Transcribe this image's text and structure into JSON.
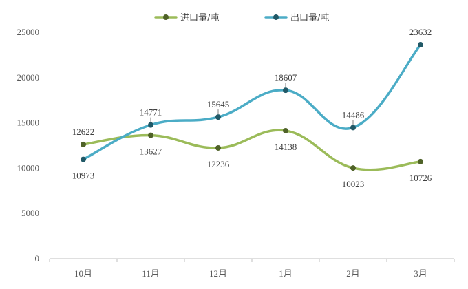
{
  "chart_data": {
    "type": "line",
    "categories": [
      "10月",
      "11月",
      "12月",
      "1月",
      "2月",
      "3月"
    ],
    "series": [
      {
        "name": "进口量/吨",
        "color": "#9BBB59",
        "values": [
          12622,
          13627,
          12236,
          14138,
          10023,
          10726
        ]
      },
      {
        "name": "出口量/吨",
        "color": "#4BACC6",
        "values": [
          10973,
          14771,
          15645,
          18607,
          14486,
          23632
        ]
      }
    ],
    "yticks": [
      0,
      5000,
      10000,
      15000,
      20000,
      25000
    ],
    "ylim": [
      0,
      25000
    ],
    "legend_position": "top-center",
    "smooth": true,
    "marker_colors": [
      "#4F6228",
      "#215967"
    ],
    "grid": false
  }
}
